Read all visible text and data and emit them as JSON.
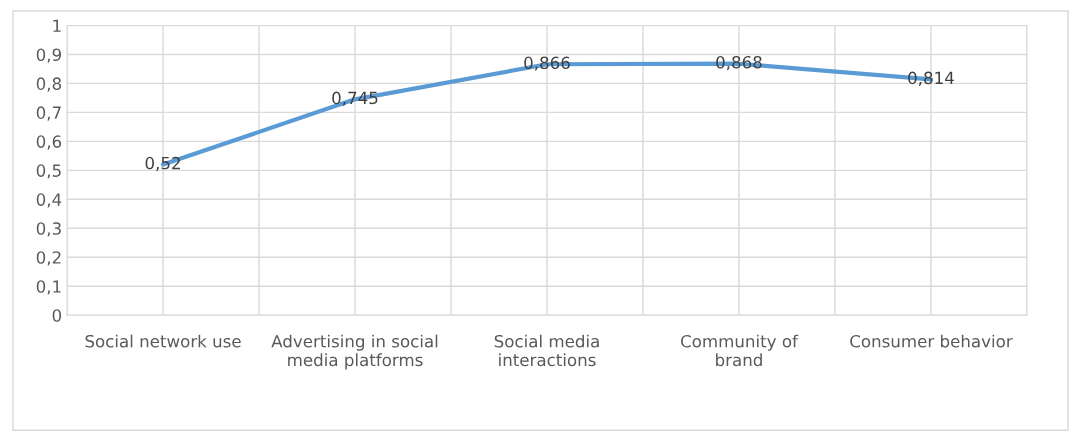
{
  "chart_data": {
    "type": "line",
    "categories": [
      "Social network use",
      "Advertising in social\nmedia platforms",
      "Social media\ninteractions",
      "Community of\nbrand",
      "Consumer behavior"
    ],
    "series": [
      {
        "color": "#5b9bd5",
        "values": [
          0.52,
          0.745,
          0.866,
          0.868,
          0.814
        ],
        "value_labels": [
          "0,52",
          "0,745",
          "0,866",
          "0,868",
          "0,814"
        ]
      }
    ],
    "ylim": [
      0,
      1
    ],
    "yticks": [
      {
        "value": 0,
        "label": "0"
      },
      {
        "value": 0.1,
        "label": "0,1"
      },
      {
        "value": 0.2,
        "label": "0,2"
      },
      {
        "value": 0.3,
        "label": "0,3"
      },
      {
        "value": 0.4,
        "label": "0,4"
      },
      {
        "value": 0.5,
        "label": "0,5"
      },
      {
        "value": 0.6,
        "label": "0,6"
      },
      {
        "value": 0.7,
        "label": "0,7"
      },
      {
        "value": 0.8,
        "label": "0,8"
      },
      {
        "value": 0.9,
        "label": "0,9"
      },
      {
        "value": 1,
        "label": "1"
      }
    ],
    "grid": true,
    "marker": "none",
    "line_style": "solid",
    "legend": false
  }
}
